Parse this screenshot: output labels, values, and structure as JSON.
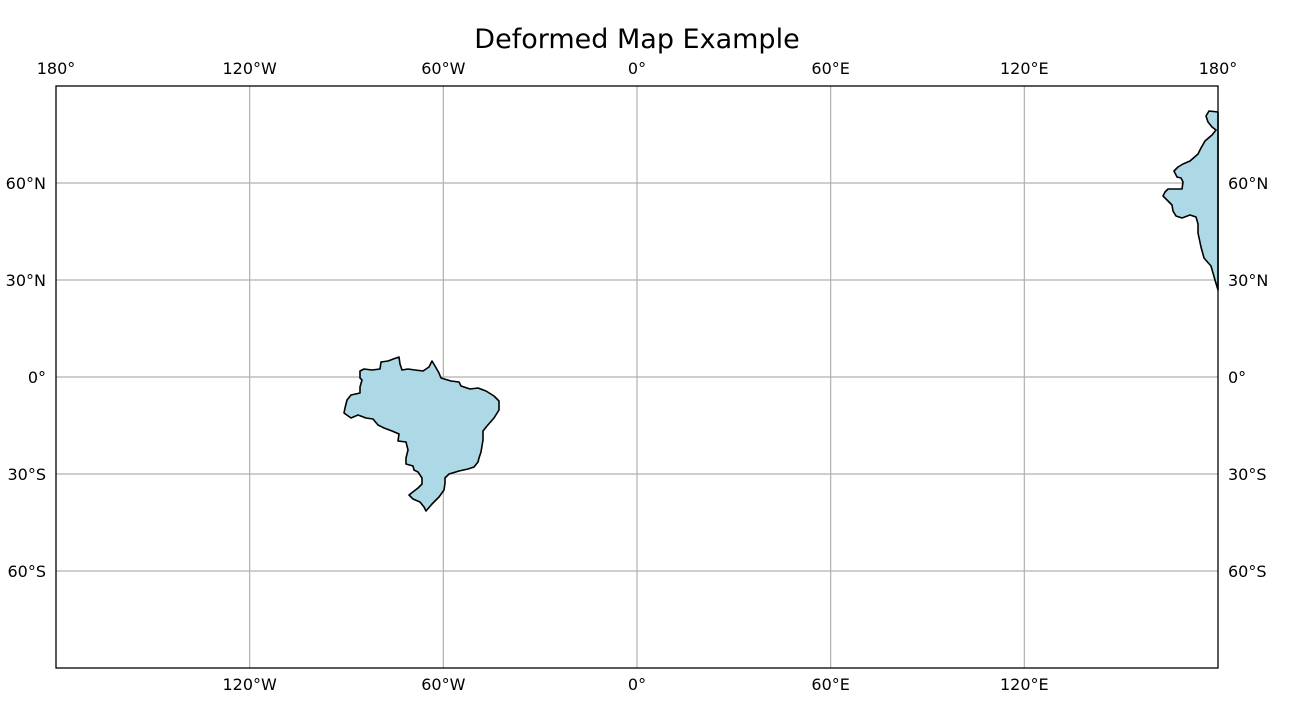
{
  "title": "Deformed Map Example",
  "colors": {
    "land": "#add8e6",
    "coastline": "#000000",
    "gridline": "#b0b0b0",
    "frame": "#000000",
    "background": "#ffffff"
  },
  "map": {
    "projection": "plate-carree",
    "lon_range": [
      -180,
      180
    ],
    "lat_range": [
      -90,
      90
    ],
    "top_lon_labels": [
      "180°",
      "120°W",
      "60°W",
      "0°",
      "60°E",
      "120°E",
      "180°"
    ],
    "bottom_lon_labels": [
      "120°W",
      "60°W",
      "0°",
      "60°E",
      "120°E"
    ],
    "left_lat_labels": [
      "60°N",
      "30°N",
      "0°",
      "30°S",
      "60°S"
    ],
    "right_lat_labels": [
      "60°N",
      "30°N",
      "0°",
      "30°S",
      "60°S"
    ]
  },
  "features": [
    {
      "name": "brazil-like-landmass",
      "fill": "land"
    },
    {
      "name": "east-edge-landmass",
      "fill": "land"
    }
  ]
}
